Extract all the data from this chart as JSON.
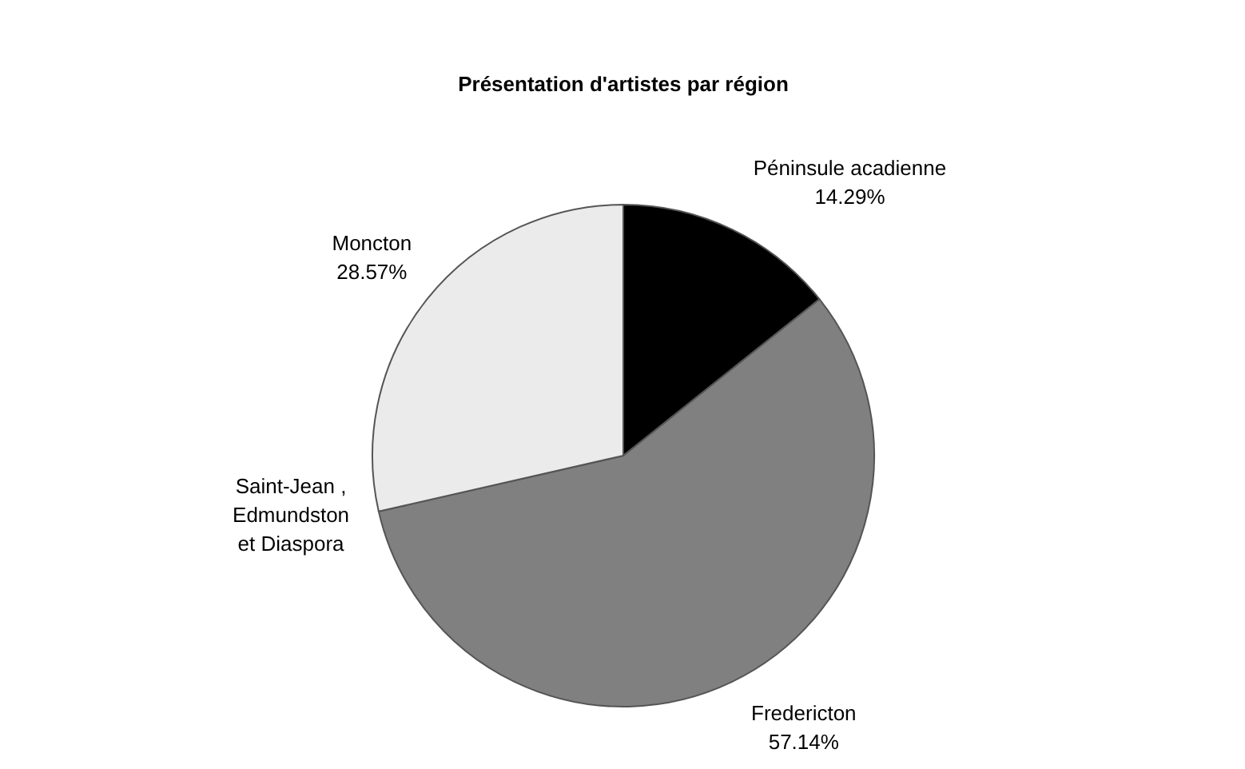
{
  "chart_data": {
    "type": "pie",
    "title": "Présentation d'artistes par région",
    "categories": [
      "Péninsule acadienne",
      "Fredericton",
      "Saint-Jean , Edmundston et Diaspora",
      "Moncton"
    ],
    "values": [
      14.29,
      57.14,
      0,
      28.57
    ],
    "value_labels": [
      "14.29%",
      "57.14%",
      null,
      "28.57%"
    ],
    "colors": [
      "#000000",
      "#808080",
      "#c0c0c0",
      "#ebebeb"
    ]
  }
}
